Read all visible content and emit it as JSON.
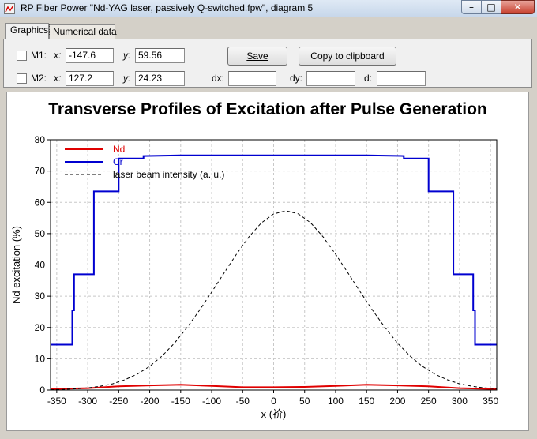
{
  "window": {
    "title": "RP Fiber Power \"Nd-YAG laser, passively Q-switched.fpw\", diagram 5",
    "icon": "app-icon",
    "buttons": {
      "minimize": "–",
      "maximize": "□",
      "close": "✕"
    }
  },
  "tabs": [
    {
      "label": "Graphics",
      "active": true
    },
    {
      "label": "Numerical data",
      "active": false
    }
  ],
  "markers": {
    "m1": {
      "label": "M1:",
      "x_label": "x:",
      "x_value": "-147.6",
      "y_label": "y:",
      "y_value": "59.56",
      "checked": false
    },
    "m2": {
      "label": "M2:",
      "x_label": "x:",
      "x_value": "127.2",
      "y_label": "y:",
      "y_value": "24.23",
      "checked": false
    },
    "dx_label": "dx:",
    "dx_value": "",
    "dy_label": "dy:",
    "dy_value": "",
    "d_label": "d:",
    "d_value": ""
  },
  "buttons": {
    "save": "Save",
    "copy": "Copy to clipboard"
  },
  "colors": {
    "nd": "#e00000",
    "cr": "#0000d0",
    "intensity": "#000000",
    "grid": "#c8c8c8"
  },
  "chart_data": {
    "type": "line",
    "title": "Transverse Profiles of Excitation after Pulse Generation",
    "xlabel": "x (祄)",
    "ylabel": "Nd excitation (%)",
    "xlim": [
      -360,
      360
    ],
    "ylim": [
      0,
      80
    ],
    "xticks": [
      -350,
      -300,
      -250,
      -200,
      -150,
      -100,
      -50,
      0,
      50,
      100,
      150,
      200,
      250,
      300,
      350
    ],
    "yticks": [
      0,
      10,
      20,
      30,
      40,
      50,
      60,
      70,
      80
    ],
    "grid": true,
    "legend_position": "top-left",
    "series": [
      {
        "name": "Nd",
        "color": "#e00000",
        "style": "solid",
        "x": [
          -360,
          -300,
          -250,
          -200,
          -150,
          -100,
          -50,
          0,
          50,
          100,
          150,
          200,
          250,
          300,
          360
        ],
        "y": [
          0.3,
          0.6,
          1.2,
          1.5,
          1.7,
          1.3,
          0.9,
          0.9,
          1.0,
          1.3,
          1.7,
          1.5,
          1.2,
          0.6,
          0.3
        ]
      },
      {
        "name": "Cr",
        "color": "#0000d0",
        "style": "step",
        "x": [
          -360,
          -325,
          -325,
          -322,
          -322,
          -290,
          -290,
          -250,
          -250,
          -210,
          -210,
          -150,
          150,
          210,
          210,
          250,
          250,
          290,
          290,
          322,
          322,
          325,
          325,
          360
        ],
        "y": [
          14.5,
          14.5,
          25.5,
          25.5,
          37,
          37,
          63.5,
          63.5,
          74,
          74,
          74.8,
          75,
          75,
          74.8,
          74,
          74,
          63.5,
          63.5,
          37,
          37,
          25.5,
          25.5,
          14.5,
          14.5
        ]
      },
      {
        "name": "laser beam intensity (a. u.)",
        "color": "#000000",
        "style": "dashed",
        "x": [
          -360,
          -340,
          -320,
          -300,
          -280,
          -260,
          -240,
          -220,
          -200,
          -180,
          -160,
          -140,
          -120,
          -100,
          -80,
          -60,
          -40,
          -20,
          0,
          20,
          40,
          60,
          80,
          100,
          120,
          140,
          160,
          180,
          200,
          220,
          240,
          260,
          280,
          300,
          320,
          340,
          360
        ],
        "y": [
          0.1,
          0.2,
          0.4,
          0.7,
          1.2,
          2.0,
          3.3,
          5.1,
          7.6,
          10.9,
          15.0,
          19.9,
          25.4,
          31.3,
          37.4,
          43.4,
          48.9,
          53.4,
          56.3,
          57.3,
          56.3,
          53.4,
          48.9,
          43.4,
          37.4,
          31.3,
          25.4,
          19.9,
          15.0,
          10.9,
          7.6,
          5.1,
          3.3,
          2.0,
          1.2,
          0.7,
          0.4
        ]
      }
    ]
  }
}
